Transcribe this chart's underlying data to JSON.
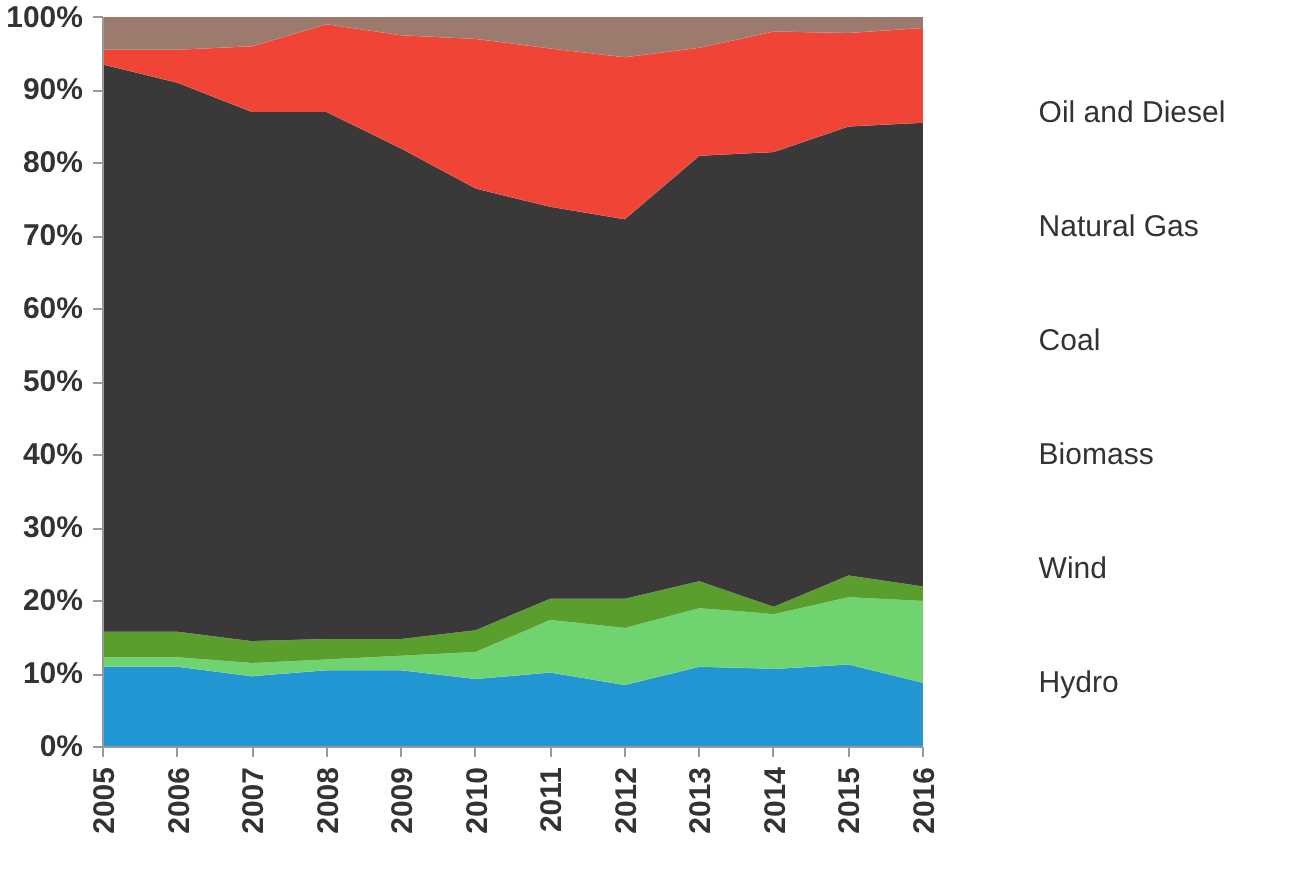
{
  "chart_data": {
    "type": "area",
    "stacked": true,
    "x": [
      2005,
      2006,
      2007,
      2008,
      2009,
      2010,
      2011,
      2012,
      2013,
      2014,
      2015,
      2016
    ],
    "xlim": [
      2005,
      2016
    ],
    "xticks": [
      2005,
      2006,
      2007,
      2008,
      2009,
      2010,
      2011,
      2012,
      2013,
      2014,
      2015,
      2016
    ],
    "ylim": [
      0,
      100
    ],
    "yticks": [
      {
        "value": 0,
        "label": "0%"
      },
      {
        "value": 10,
        "label": "10%"
      },
      {
        "value": 20,
        "label": "20%"
      },
      {
        "value": 30,
        "label": "30%"
      },
      {
        "value": 40,
        "label": "40%"
      },
      {
        "value": 50,
        "label": "50%"
      },
      {
        "value": 60,
        "label": "60%"
      },
      {
        "value": 70,
        "label": "70%"
      },
      {
        "value": 80,
        "label": "80%"
      },
      {
        "value": 90,
        "label": "90%"
      },
      {
        "value": 100,
        "label": "100%"
      }
    ],
    "grid": false,
    "legend": "right",
    "series": [
      {
        "name": "Hydro",
        "color": "#2196d3",
        "values": [
          11,
          11,
          9.7,
          10.5,
          10.5,
          9.3,
          10.2,
          8.5,
          11,
          10.7,
          11.3,
          8.8
        ]
      },
      {
        "name": "Wind",
        "color": "#6fd46f",
        "values": [
          1.3,
          1.3,
          1.8,
          1.5,
          2,
          3.7,
          7.2,
          7.8,
          8,
          7.5,
          9.2,
          11.2
        ]
      },
      {
        "name": "Biomass",
        "color": "#5a9e2e",
        "values": [
          3.5,
          3.5,
          3,
          2.8,
          2.3,
          3,
          2.9,
          4,
          3.7,
          1,
          3,
          2
        ]
      },
      {
        "name": "Coal",
        "color": "#3a3838",
        "values": [
          77.7,
          75.2,
          72.5,
          72.2,
          67.2,
          60.5,
          53.7,
          52,
          58.3,
          62.3,
          61.5,
          63.5
        ]
      },
      {
        "name": "Natural Gas",
        "color": "#f04437",
        "values": [
          2,
          4.5,
          9,
          12,
          15.5,
          20.5,
          21.7,
          22.2,
          14.8,
          16.5,
          12.8,
          13
        ]
      },
      {
        "name": "Oil and Diesel",
        "color": "#9c7b6e",
        "values": [
          4.5,
          4.5,
          4,
          1,
          2.5,
          3,
          4.3,
          5.5,
          4.2,
          2,
          2.2,
          1.5
        ]
      }
    ]
  }
}
